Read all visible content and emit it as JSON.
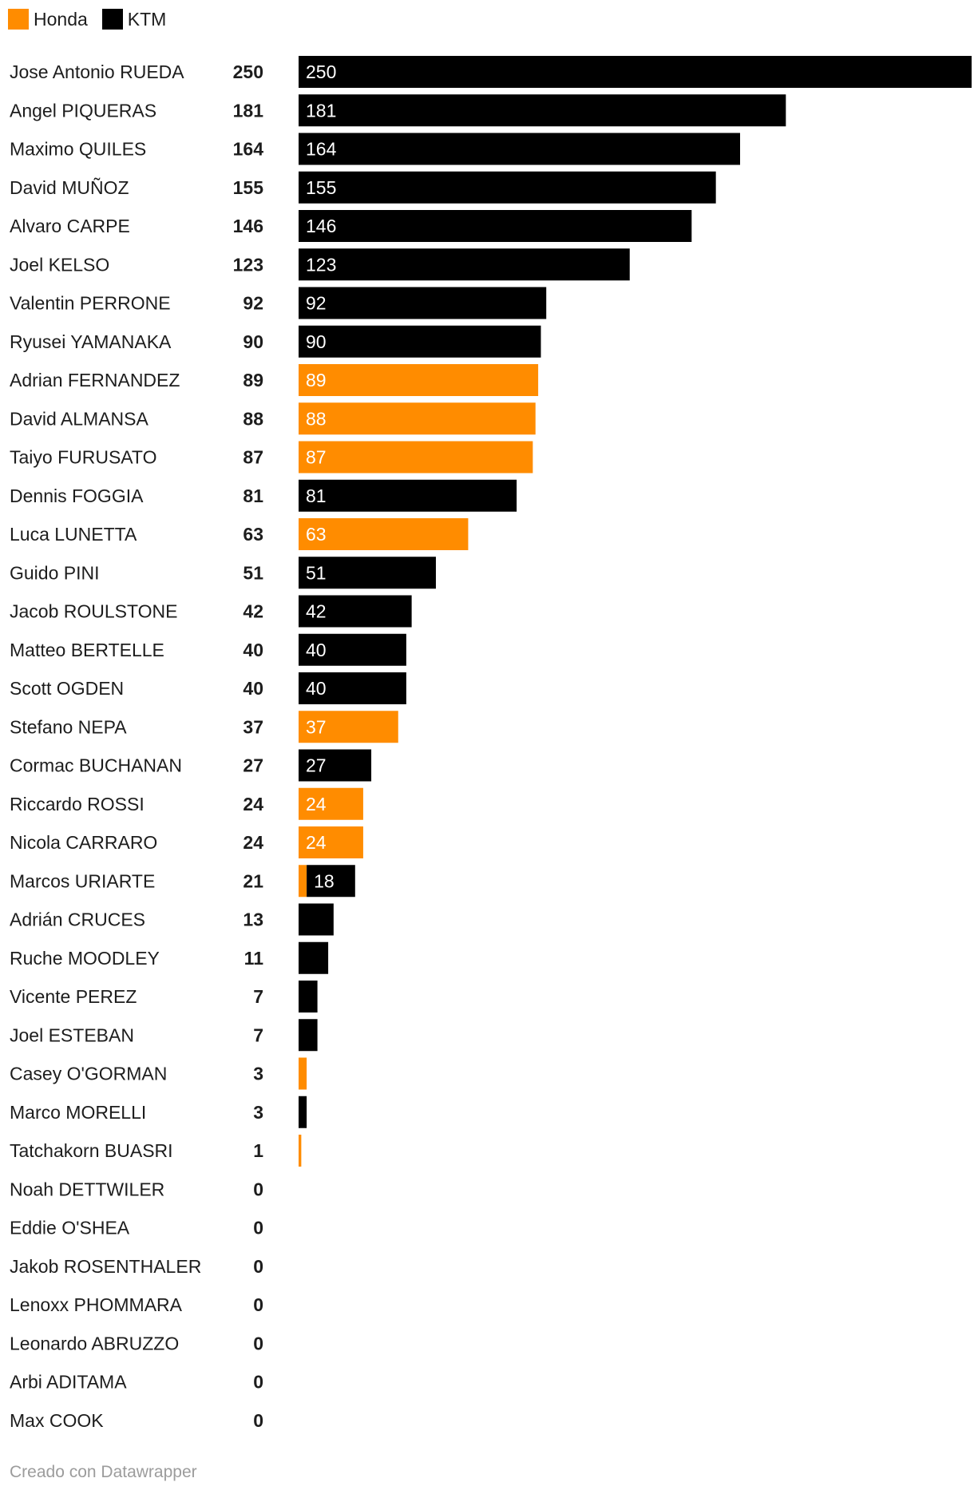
{
  "legend": [
    {
      "name": "Honda",
      "color": "#ff8c00"
    },
    {
      "name": "KTM",
      "color": "#000000"
    }
  ],
  "footer": "Creado con Datawrapper",
  "chart_data": {
    "type": "bar",
    "orientation": "horizontal",
    "stacked": true,
    "legend_position": "top-left",
    "xlim": [
      0,
      250
    ],
    "grid": false,
    "series_colors": {
      "Honda": "#ff8c00",
      "KTM": "#000000"
    },
    "categories": [
      "Jose Antonio RUEDA",
      "Angel PIQUERAS",
      "Maximo QUILES",
      "David MUÑOZ",
      "Alvaro CARPE",
      "Joel KELSO",
      "Valentin PERRONE",
      "Ryusei YAMANAKA",
      "Adrian FERNANDEZ",
      "David ALMANSA",
      "Taiyo FURUSATO",
      "Dennis FOGGIA",
      "Luca LUNETTA",
      "Guido PINI",
      "Jacob ROULSTONE",
      "Matteo BERTELLE",
      "Scott OGDEN",
      "Stefano NEPA",
      "Cormac BUCHANAN",
      "Riccardo ROSSI",
      "Nicola CARRARO",
      "Marcos URIARTE",
      "Adrián CRUCES",
      "Ruche MOODLEY",
      "Vicente PEREZ",
      "Joel ESTEBAN",
      "Casey O'GORMAN",
      "Marco MORELLI",
      "Tatchakorn BUASRI",
      "Noah DETTWILER",
      "Eddie O'SHEA",
      "Jakob ROSENTHALER",
      "Lenoxx PHOMMARA",
      "Leonardo ABRUZZO",
      "Arbi ADITAMA",
      "Max COOK"
    ],
    "totals": [
      250,
      181,
      164,
      155,
      146,
      123,
      92,
      90,
      89,
      88,
      87,
      81,
      63,
      51,
      42,
      40,
      40,
      37,
      27,
      24,
      24,
      21,
      13,
      11,
      7,
      7,
      3,
      3,
      1,
      0,
      0,
      0,
      0,
      0,
      0,
      0
    ],
    "series": [
      {
        "name": "Honda",
        "values": [
          0,
          0,
          0,
          0,
          0,
          0,
          0,
          0,
          89,
          88,
          87,
          0,
          63,
          0,
          0,
          0,
          0,
          37,
          0,
          24,
          24,
          3,
          0,
          0,
          0,
          0,
          3,
          0,
          1,
          0,
          0,
          0,
          0,
          0,
          0,
          0
        ]
      },
      {
        "name": "KTM",
        "values": [
          250,
          181,
          164,
          155,
          146,
          123,
          92,
          90,
          0,
          0,
          0,
          81,
          0,
          51,
          42,
          40,
          40,
          0,
          27,
          0,
          0,
          18,
          13,
          11,
          7,
          7,
          0,
          3,
          0,
          0,
          0,
          0,
          0,
          0,
          0,
          0
        ]
      }
    ],
    "bar_labels": [
      [
        "",
        "250"
      ],
      [
        "",
        "181"
      ],
      [
        "",
        "164"
      ],
      [
        "",
        "155"
      ],
      [
        "",
        "146"
      ],
      [
        "",
        "123"
      ],
      [
        "",
        "92"
      ],
      [
        "",
        "90"
      ],
      [
        "89",
        ""
      ],
      [
        "88",
        ""
      ],
      [
        "87",
        ""
      ],
      [
        "",
        "81"
      ],
      [
        "63",
        ""
      ],
      [
        "",
        "51"
      ],
      [
        "",
        "42"
      ],
      [
        "",
        "40"
      ],
      [
        "",
        "40"
      ],
      [
        "37",
        ""
      ],
      [
        "",
        "27"
      ],
      [
        "24",
        ""
      ],
      [
        "24",
        ""
      ],
      [
        "",
        "18"
      ],
      [
        "",
        ""
      ],
      [
        "",
        ""
      ],
      [
        "",
        ""
      ],
      [
        "",
        ""
      ],
      [
        "",
        ""
      ],
      [
        "",
        ""
      ],
      [
        "",
        ""
      ],
      [
        "",
        ""
      ],
      [
        "",
        ""
      ],
      [
        "",
        ""
      ],
      [
        "",
        ""
      ],
      [
        "",
        ""
      ],
      [
        "",
        ""
      ],
      [
        "",
        ""
      ]
    ]
  }
}
